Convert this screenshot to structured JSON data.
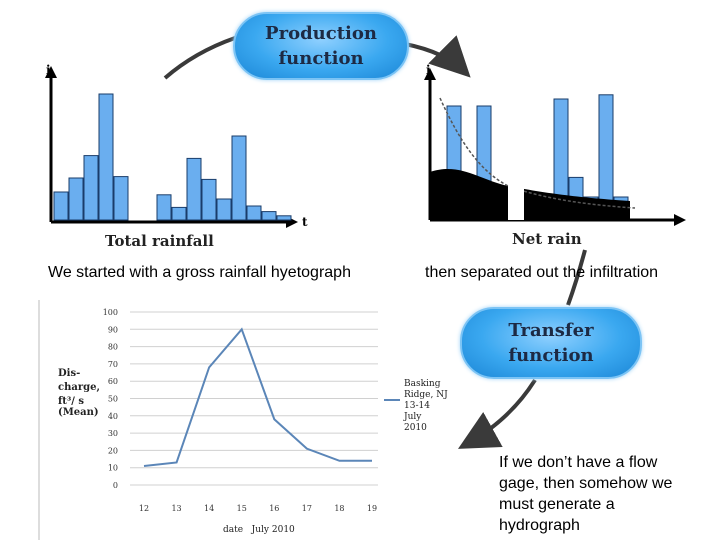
{
  "production_function": {
    "line1": "Production",
    "line2": "function"
  },
  "transfer_function": {
    "line1": "Transfer",
    "line2": "function"
  },
  "left_hyetograph": {
    "axis_y_label": "i",
    "axis_x_label": "t",
    "title": "Total rainfall",
    "bars": [
      2.0,
      3.0,
      4.6,
      9.0,
      3.1,
      1.8,
      0.9,
      4.4,
      2.9,
      1.5,
      6.0,
      1.0,
      0.6,
      0.3
    ]
  },
  "right_hyetograph": {
    "axis_y_label": "i",
    "axis_x_label": "t",
    "title": "Net rain",
    "bars": [
      3.0,
      8.0,
      3.0,
      8.0,
      1.4,
      1.4,
      8.5,
      2.9,
      1.5,
      8.8,
      1.5
    ]
  },
  "captions": {
    "left": "We started with a gross rainfall hyetograph",
    "right": "then separated out the infiltration",
    "bottom": [
      "If we don’t have a flow",
      "gage, then somehow we",
      "must generate a",
      "hydrograph"
    ]
  },
  "chart_data": {
    "type": "line",
    "x": [
      12,
      13,
      14,
      15,
      16,
      17,
      18,
      19
    ],
    "series": [
      {
        "name": "Basking Ridge, NJ 13-14 July 2010",
        "values": [
          11,
          13,
          68,
          90,
          38,
          21,
          14,
          14
        ]
      }
    ],
    "ylabel_lines": [
      "Dis-",
      "charge,",
      "ft³/ s",
      "(Mean)"
    ],
    "xlabel": "date   July 2010",
    "legend_lines": [
      "Basking",
      "Ridge, NJ",
      "13-14",
      "July",
      "2010"
    ],
    "yticks": [
      0,
      10,
      20,
      30,
      40,
      50,
      60,
      70,
      80,
      90,
      100
    ],
    "xticks": [
      12,
      13,
      14,
      15,
      16,
      17,
      18,
      19
    ],
    "ylim": [
      0,
      100
    ],
    "grid": true,
    "legend_position": "right",
    "colors": {
      "line": "#5b86b8",
      "grid": "#d0d0d0"
    }
  },
  "colors": {
    "rain_bar": "#6aaeef",
    "pill": "#3aa8f0",
    "arrow": "#3a3a3a"
  }
}
